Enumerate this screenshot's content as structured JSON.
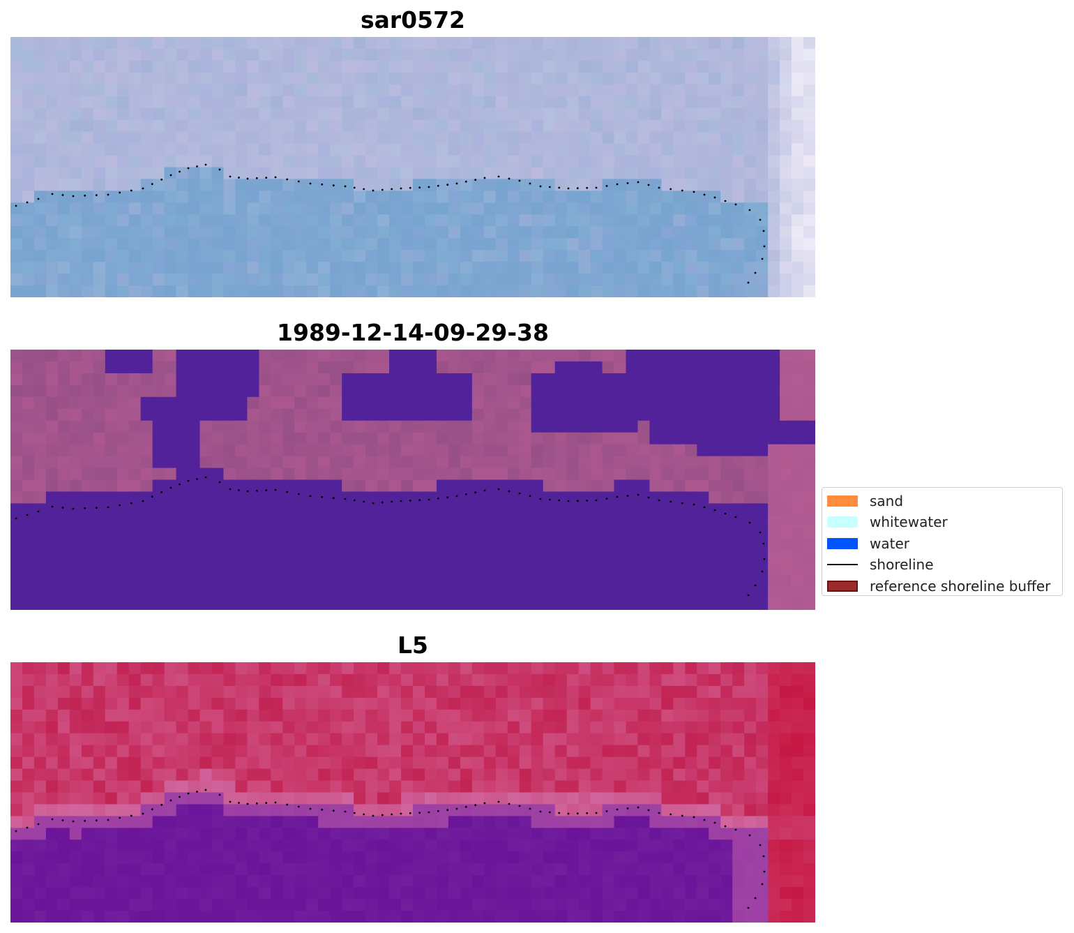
{
  "panels": [
    {
      "title": "sar0572",
      "kind": "sar-composite"
    },
    {
      "title": "1989-12-14-09-29-38",
      "kind": "classified"
    },
    {
      "title": "L5",
      "kind": "index"
    }
  ],
  "legend": {
    "items": [
      {
        "label": "sand",
        "color": "#ff8c3a",
        "type": "patch"
      },
      {
        "label": "whitewater",
        "color": "#c8ffff",
        "type": "patch"
      },
      {
        "label": "water",
        "color": "#0055ff",
        "type": "patch"
      },
      {
        "label": "shoreline",
        "color": "#000000",
        "type": "line"
      },
      {
        "label": "reference shoreline buffer",
        "color": "#9b2c2c",
        "type": "patch",
        "edge": "#6e1010"
      }
    ]
  },
  "colors": {
    "sar_land": "#b2b8dc",
    "sar_water": "#78a4d0",
    "class_water": "#52229a",
    "class_land": "#985088",
    "index_high": "#c22454",
    "index_low": "#6a149a",
    "shoreline_points": "#000000"
  }
}
